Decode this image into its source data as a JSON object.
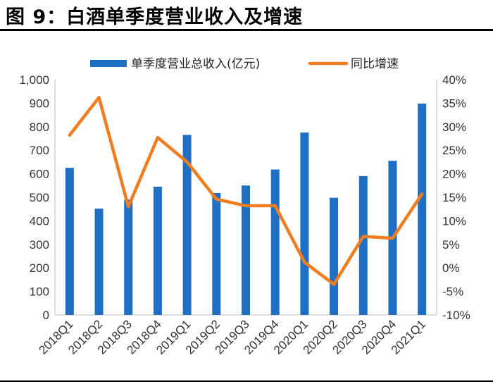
{
  "figure": {
    "title": "图 9：白酒单季度营业收入及增速"
  },
  "colors": {
    "bar": "#1f6fc5",
    "line": "#f07d1f",
    "axis": "#bfbfbf"
  },
  "chart_data": {
    "type": "bar",
    "categories": [
      "2018Q1",
      "2018Q2",
      "2018Q3",
      "2018Q4",
      "2019Q1",
      "2019Q2",
      "2019Q3",
      "2019Q4",
      "2020Q1",
      "2020Q2",
      "2020Q3",
      "2020Q4",
      "2021Q1"
    ],
    "series": [
      {
        "name": "单季度营业总收入(亿元)",
        "type": "bar",
        "axis": "left",
        "values": [
          625,
          452,
          490,
          545,
          765,
          518,
          550,
          618,
          775,
          498,
          590,
          655,
          898
        ]
      },
      {
        "name": "同比增速",
        "type": "line",
        "axis": "right",
        "values": [
          28.2,
          36.2,
          13.0,
          27.7,
          22.5,
          14.6,
          13.2,
          13.2,
          1.2,
          -3.5,
          6.7,
          6.3,
          15.7
        ]
      }
    ],
    "yleft": {
      "lim": [
        0,
        1000
      ],
      "ticks": [
        "0",
        "100",
        "200",
        "300",
        "400",
        "500",
        "600",
        "700",
        "800",
        "900",
        "1,000"
      ]
    },
    "yright": {
      "lim": [
        -10,
        40
      ],
      "ticks": [
        "-10%",
        "-5%",
        "0%",
        "5%",
        "10%",
        "15%",
        "20%",
        "25%",
        "30%",
        "35%",
        "40%"
      ]
    },
    "legend": {
      "position": "top"
    },
    "grid": false
  }
}
